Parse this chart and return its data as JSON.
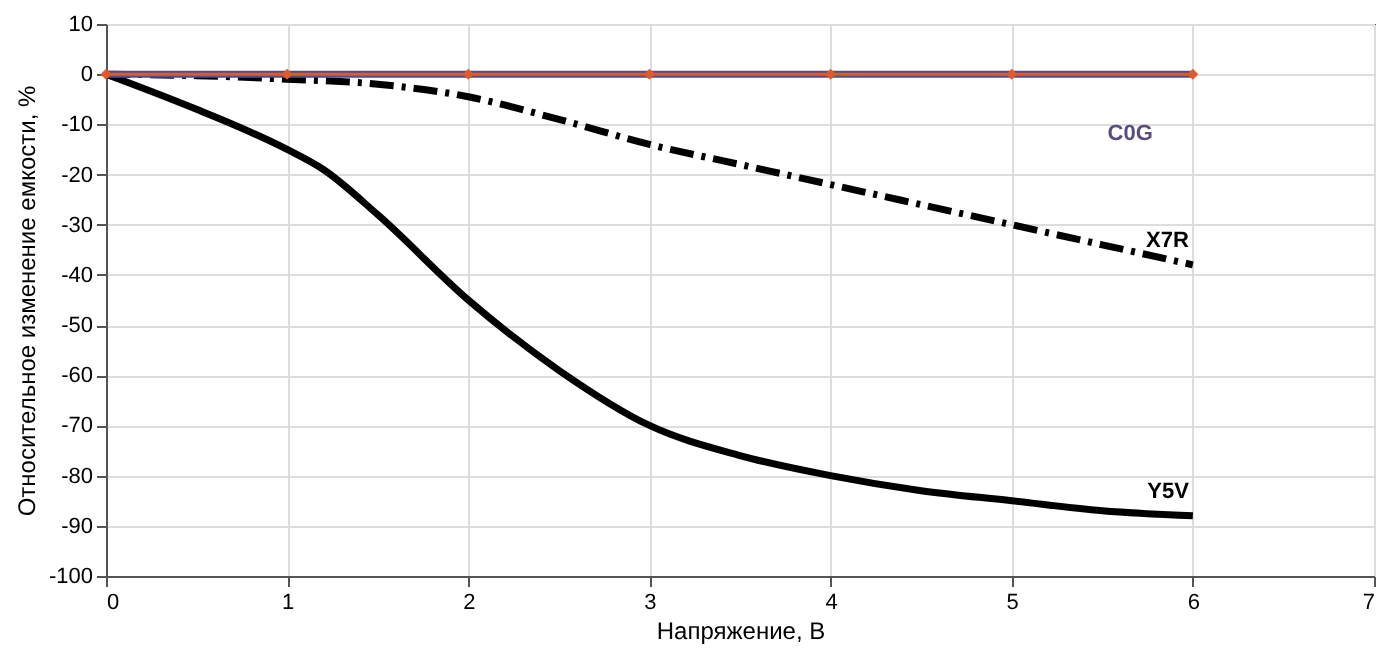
{
  "chart_data": {
    "type": "line",
    "xlabel": "Напряжение, В",
    "ylabel": "Относительное изменение емкости, %",
    "xlim": [
      0,
      7
    ],
    "xticks": [
      0,
      1,
      2,
      3,
      4,
      5,
      6,
      7
    ],
    "ylim": [
      -100,
      10
    ],
    "yticks": [
      -100,
      -90,
      -80,
      -70,
      -60,
      -50,
      -40,
      -30,
      -20,
      -10,
      0,
      10
    ],
    "grid": true,
    "series": [
      {
        "name": "Y5V",
        "color": "#000000",
        "line_style": "solid",
        "marker": "none",
        "x": [
          0,
          0.5,
          1,
          1.2,
          1.5,
          2,
          2.5,
          3,
          3.5,
          4,
          4.5,
          5,
          5.5,
          6
        ],
        "values": [
          0,
          -7,
          -15,
          -19,
          -28,
          -45,
          -59,
          -70,
          -76,
          -80,
          -83,
          -85,
          -87,
          -88
        ]
      },
      {
        "name": "X7R",
        "color": "#000000",
        "line_style": "dashdot",
        "marker": "none",
        "x": [
          0,
          0.5,
          1,
          1.5,
          2,
          2.5,
          3,
          3.5,
          4,
          4.5,
          5,
          5.5,
          6
        ],
        "values": [
          0,
          -0.3,
          -1,
          -2,
          -4.5,
          -9,
          -14,
          -18,
          -22,
          -26,
          -30,
          -34,
          -38
        ]
      },
      {
        "name": "C0G",
        "color": "#5a4c7c",
        "line_style": "solid",
        "marker": "none",
        "x": [
          0,
          6
        ],
        "values": [
          0,
          0
        ]
      },
      {
        "color": "#e05a2b",
        "line_style": "solid",
        "marker": "diamond",
        "x": [
          0,
          1,
          2,
          3,
          4,
          5,
          6
        ],
        "values": [
          0,
          0,
          0,
          0,
          0,
          0,
          0
        ]
      }
    ]
  }
}
